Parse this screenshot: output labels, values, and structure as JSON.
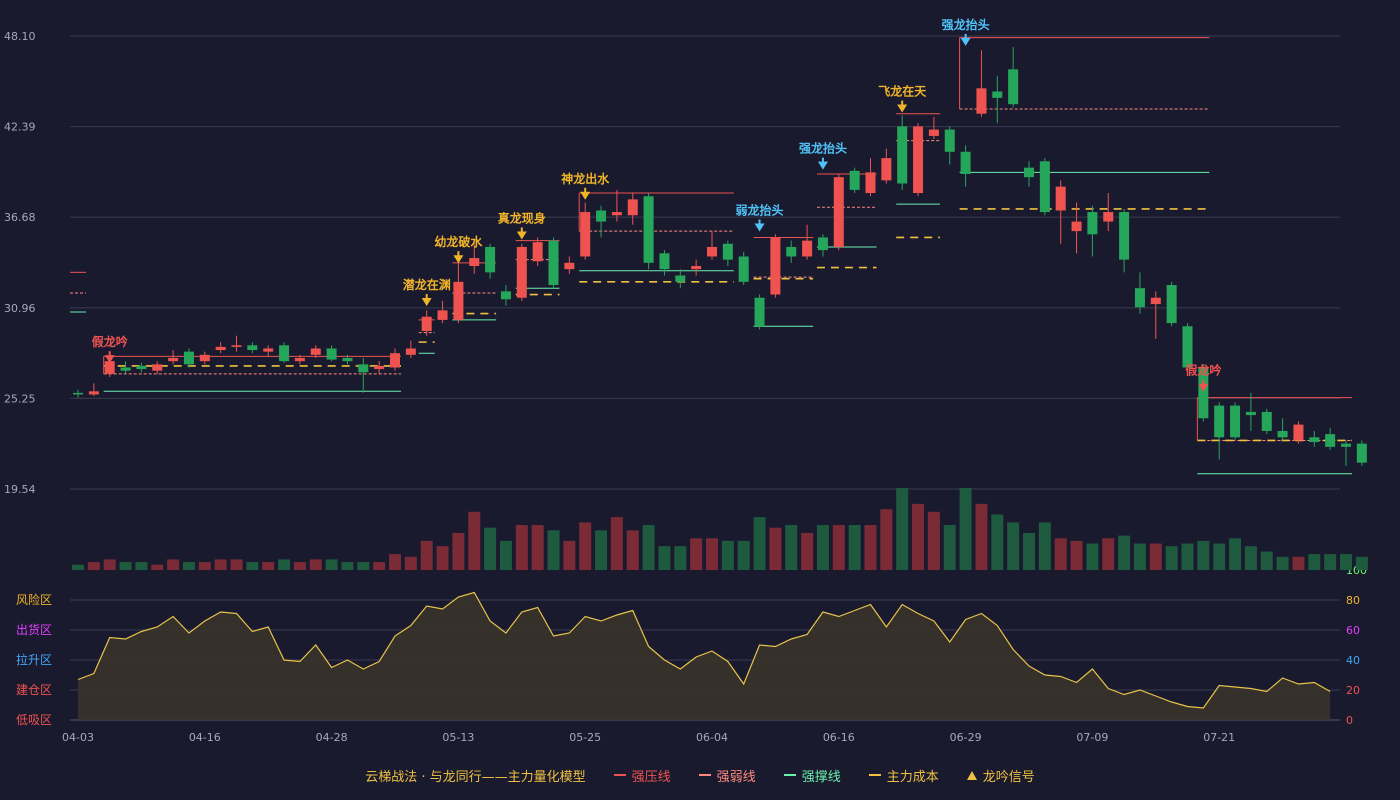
{
  "legend": {
    "title": "云梯战法 · 与龙同行——主力量化模型",
    "items": [
      {
        "label": "强压线",
        "color": "#ef5350",
        "style": "solid"
      },
      {
        "label": "强弱线",
        "color": "#ff8a80",
        "style": "dashed"
      },
      {
        "label": "强撑线",
        "color": "#69f0ae",
        "style": "solid"
      },
      {
        "label": "主力成本",
        "color": "#f0c040",
        "style": "dashed"
      },
      {
        "label": "龙吟信号",
        "color": "#f0c040",
        "style": "triangle"
      }
    ]
  },
  "colors": {
    "up": "#ef5350",
    "down": "#26a65b",
    "resist": "#ef5350",
    "weak": "#ff8a80",
    "support": "#69f0ae",
    "cost": "#f0c040",
    "line": "#e6c34a",
    "signal_red": "#ef5350",
    "signal_yellow": "#f0b429",
    "signal_blue": "#4fc3f7"
  },
  "chart_data": {
    "type": "candlestick",
    "price_axis": {
      "ticks": [
        "48.10",
        "42.39",
        "36.68",
        "30.96",
        "25.25",
        "19.54"
      ],
      "range": [
        19.54,
        48.1
      ]
    },
    "x_ticks": [
      {
        "label": "04-03",
        "index": 0
      },
      {
        "label": "04-16",
        "index": 8
      },
      {
        "label": "04-28",
        "index": 16
      },
      {
        "label": "05-13",
        "index": 24
      },
      {
        "label": "05-25",
        "index": 32
      },
      {
        "label": "06-04",
        "index": 40
      },
      {
        "label": "06-16",
        "index": 48
      },
      {
        "label": "06-29",
        "index": 56
      },
      {
        "label": "07-09",
        "index": 64
      },
      {
        "label": "07-21",
        "index": 72
      }
    ],
    "candles": [
      [
        25.6,
        25.5,
        25.8,
        25.3,
        2
      ],
      [
        25.5,
        25.7,
        26.2,
        25.4,
        3
      ],
      [
        26.8,
        27.6,
        27.8,
        26.6,
        4
      ],
      [
        27.2,
        27.0,
        27.6,
        26.8,
        3
      ],
      [
        27.3,
        27.1,
        27.5,
        26.9,
        3
      ],
      [
        27.0,
        27.4,
        27.6,
        26.8,
        2
      ],
      [
        27.6,
        27.8,
        28.3,
        27.4,
        4
      ],
      [
        28.2,
        27.4,
        28.4,
        27.2,
        3
      ],
      [
        27.6,
        28.0,
        28.2,
        27.4,
        3
      ],
      [
        28.3,
        28.5,
        28.8,
        28.1,
        4
      ],
      [
        28.5,
        28.6,
        29.2,
        28.2,
        4
      ],
      [
        28.6,
        28.3,
        28.8,
        28.1,
        3
      ],
      [
        28.2,
        28.4,
        28.6,
        27.9,
        3
      ],
      [
        28.6,
        27.6,
        28.8,
        27.5,
        4
      ],
      [
        27.6,
        27.8,
        28.0,
        27.4,
        3
      ],
      [
        28.0,
        28.4,
        28.6,
        27.8,
        4
      ],
      [
        28.4,
        27.7,
        28.6,
        27.6,
        4
      ],
      [
        27.8,
        27.6,
        28.0,
        27.4,
        3
      ],
      [
        27.4,
        26.9,
        27.8,
        25.6,
        3
      ],
      [
        27.1,
        27.3,
        27.6,
        26.8,
        3
      ],
      [
        27.2,
        28.1,
        28.4,
        27.0,
        6
      ],
      [
        28.0,
        28.4,
        28.9,
        27.8,
        5
      ],
      [
        29.5,
        30.4,
        30.8,
        29.2,
        11
      ],
      [
        30.2,
        30.8,
        31.4,
        30.0,
        9
      ],
      [
        30.2,
        32.6,
        33.8,
        30.0,
        14
      ],
      [
        33.6,
        34.1,
        35.2,
        33.1,
        22
      ],
      [
        34.8,
        33.2,
        35.0,
        32.8,
        16
      ],
      [
        32.0,
        31.5,
        32.4,
        31.1,
        11
      ],
      [
        31.6,
        34.8,
        35.0,
        31.4,
        17
      ],
      [
        33.9,
        35.1,
        35.4,
        33.6,
        17
      ],
      [
        35.2,
        32.4,
        35.4,
        32.2,
        15
      ],
      [
        33.4,
        33.8,
        34.2,
        33.1,
        11
      ],
      [
        34.2,
        37.0,
        37.6,
        34.0,
        18
      ],
      [
        37.1,
        36.4,
        37.4,
        35.4,
        15
      ],
      [
        36.8,
        37.0,
        38.4,
        36.4,
        20
      ],
      [
        36.8,
        37.8,
        38.2,
        36.2,
        15
      ],
      [
        38.0,
        33.8,
        38.2,
        33.4,
        17
      ],
      [
        34.4,
        33.4,
        34.6,
        33.0,
        9
      ],
      [
        33.0,
        32.6,
        33.4,
        32.2,
        9
      ],
      [
        33.4,
        33.6,
        34.0,
        33.0,
        12
      ],
      [
        34.2,
        34.8,
        35.8,
        34.0,
        12
      ],
      [
        35.0,
        34.0,
        35.2,
        33.6,
        11
      ],
      [
        34.2,
        32.6,
        34.5,
        32.4,
        11
      ],
      [
        31.6,
        29.8,
        31.8,
        29.6,
        20
      ],
      [
        31.8,
        35.4,
        35.6,
        31.6,
        16
      ],
      [
        34.8,
        34.2,
        35.2,
        33.8,
        17
      ],
      [
        34.2,
        35.2,
        36.2,
        34.0,
        14
      ],
      [
        35.4,
        34.6,
        35.6,
        34.2,
        17
      ],
      [
        34.8,
        39.2,
        39.4,
        34.6,
        17
      ],
      [
        39.6,
        38.4,
        39.8,
        38.2,
        17
      ],
      [
        38.2,
        39.5,
        40.4,
        38.0,
        17
      ],
      [
        39.0,
        40.4,
        41.0,
        38.8,
        23
      ],
      [
        42.4,
        38.8,
        43.1,
        38.4,
        31
      ],
      [
        38.2,
        42.4,
        42.6,
        38.0,
        25
      ],
      [
        41.8,
        42.2,
        43.0,
        41.6,
        22
      ],
      [
        42.2,
        40.8,
        42.4,
        40.0,
        17
      ],
      [
        40.8,
        39.4,
        41.2,
        38.6,
        31
      ],
      [
        43.2,
        44.8,
        47.2,
        43.0,
        25
      ],
      [
        44.6,
        44.2,
        45.6,
        42.6,
        21
      ],
      [
        46.0,
        43.8,
        47.4,
        43.6,
        18
      ],
      [
        39.8,
        39.2,
        40.2,
        38.6,
        14
      ],
      [
        40.2,
        37.0,
        40.4,
        36.8,
        18
      ],
      [
        37.1,
        38.6,
        39.0,
        35.0,
        12
      ],
      [
        35.8,
        36.4,
        37.6,
        34.4,
        11
      ],
      [
        37.0,
        35.6,
        37.4,
        34.2,
        10
      ],
      [
        36.4,
        37.0,
        38.2,
        35.8,
        12
      ],
      [
        37.0,
        34.0,
        37.2,
        33.2,
        13
      ],
      [
        32.2,
        31.0,
        33.2,
        30.6,
        10
      ],
      [
        31.2,
        31.6,
        32.0,
        29.0,
        10
      ],
      [
        32.4,
        30.0,
        32.6,
        29.8,
        9
      ],
      [
        29.8,
        27.2,
        30.0,
        27.0,
        10
      ],
      [
        27.2,
        24.0,
        27.4,
        23.8,
        11
      ],
      [
        24.8,
        22.8,
        25.0,
        21.4,
        10
      ],
      [
        24.8,
        22.8,
        25.0,
        22.6,
        12
      ],
      [
        24.4,
        24.2,
        25.6,
        23.2,
        9
      ],
      [
        24.4,
        23.2,
        24.6,
        23.0,
        7
      ],
      [
        23.2,
        22.8,
        24.0,
        22.6,
        5
      ],
      [
        22.6,
        23.6,
        23.8,
        22.4,
        5
      ],
      [
        22.8,
        22.5,
        23.2,
        22.2,
        6
      ],
      [
        23.0,
        22.2,
        23.4,
        22.0,
        6
      ],
      [
        22.4,
        22.2,
        22.6,
        21.0,
        6
      ],
      [
        22.4,
        21.2,
        22.6,
        21.0,
        5
      ]
    ],
    "signals": [
      {
        "label": "假龙吟",
        "index": 2,
        "price": 27.6,
        "color": "red"
      },
      {
        "label": "潜龙在渊",
        "index": 22,
        "price": 31.2,
        "color": "yellow"
      },
      {
        "label": "幼龙破水",
        "index": 24,
        "price": 33.9,
        "color": "yellow"
      },
      {
        "label": "真龙现身",
        "index": 28,
        "price": 35.4,
        "color": "yellow"
      },
      {
        "label": "神龙出水",
        "index": 32,
        "price": 37.9,
        "color": "yellow"
      },
      {
        "label": "弱龙抬头",
        "index": 43,
        "price": 35.9,
        "color": "blue"
      },
      {
        "label": "强龙抬头",
        "index": 47,
        "price": 39.8,
        "color": "blue"
      },
      {
        "label": "飞龙在天",
        "index": 52,
        "price": 43.4,
        "color": "yellow"
      },
      {
        "label": "强龙抬头",
        "index": 56,
        "price": 47.6,
        "color": "blue"
      },
      {
        "label": "假龙吟",
        "index": 71,
        "price": 25.8,
        "color": "red"
      }
    ],
    "levels": [
      {
        "start": 0,
        "end": 0,
        "resist": 33.2,
        "weak": 31.9,
        "support": 30.7,
        "cost": null
      },
      {
        "start": 2,
        "end": 20,
        "resist": 27.9,
        "weak": 26.8,
        "support": 25.7,
        "cost": 27.3
      },
      {
        "start": 22,
        "end": 22,
        "resist": 30.2,
        "weak": 29.4,
        "support": 28.1,
        "cost": 28.8
      },
      {
        "start": 24,
        "end": 26,
        "resist": 33.8,
        "weak": 31.9,
        "support": 30.2,
        "cost": 30.6
      },
      {
        "start": 28,
        "end": 30,
        "resist": 35.2,
        "weak": 34.0,
        "support": 32.2,
        "cost": 31.8
      },
      {
        "start": 32,
        "end": 41,
        "resist": 38.2,
        "weak": 35.8,
        "support": 33.3,
        "cost": 32.6
      },
      {
        "start": 43,
        "end": 46,
        "resist": 35.4,
        "weak": 32.9,
        "support": 29.8,
        "cost": 32.8
      },
      {
        "start": 47,
        "end": 50,
        "resist": 39.4,
        "weak": 37.3,
        "support": 34.8,
        "cost": 33.5
      },
      {
        "start": 52,
        "end": 54,
        "resist": 43.2,
        "weak": 41.5,
        "support": 37.5,
        "cost": 35.4
      },
      {
        "start": 56,
        "end": 71,
        "resist": 48.0,
        "weak": 43.5,
        "support": 39.5,
        "cost": 37.2
      },
      {
        "start": 71,
        "end": 80,
        "resist": 25.3,
        "weak": 22.6,
        "support": 20.5,
        "cost": 22.6
      }
    ],
    "indicator": {
      "range": [
        0,
        100
      ],
      "ticks_right": [
        {
          "value": 100,
          "label": "100",
          "color": "#66ff66"
        },
        {
          "value": 80,
          "label": "80",
          "color": "#f0b429"
        },
        {
          "value": 60,
          "label": "60",
          "color": "#e040fb"
        },
        {
          "value": 40,
          "label": "40",
          "color": "#42a5f5"
        },
        {
          "value": 20,
          "label": "20",
          "color": "#ef5350"
        },
        {
          "value": 0,
          "label": "0",
          "color": "#ef5350"
        }
      ],
      "zones_left": [
        {
          "label": "风险区",
          "value": 80,
          "color": "#f0b429"
        },
        {
          "label": "出货区",
          "value": 60,
          "color": "#e040fb"
        },
        {
          "label": "拉升区",
          "value": 40,
          "color": "#42a5f5"
        },
        {
          "label": "建仓区",
          "value": 20,
          "color": "#ef5350"
        },
        {
          "label": "低吸区",
          "value": 0,
          "color": "#ef5350"
        }
      ],
      "values": [
        27,
        31,
        55,
        54,
        59,
        62,
        69,
        58,
        66,
        72,
        71,
        59,
        62,
        40,
        39,
        50,
        35,
        40,
        34,
        39,
        56,
        63,
        76,
        74,
        82,
        85,
        66,
        58,
        72,
        75,
        56,
        58,
        69,
        66,
        70,
        73,
        49,
        40,
        34,
        42,
        46,
        39,
        24,
        50,
        49,
        54,
        57,
        72,
        69,
        73,
        77,
        62,
        77,
        71,
        66,
        52,
        67,
        71,
        63,
        47,
        36,
        30,
        29,
        25,
        34,
        21,
        17,
        20,
        16,
        12,
        9,
        8,
        23,
        22,
        21,
        19,
        28,
        24,
        25,
        19
      ]
    }
  }
}
